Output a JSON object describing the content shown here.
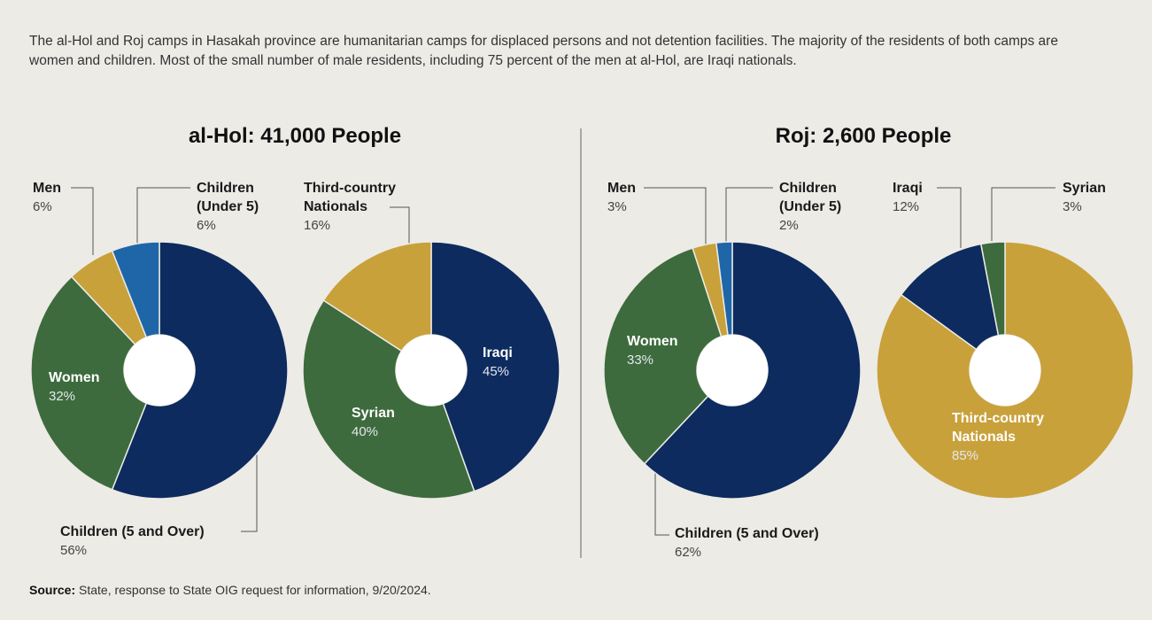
{
  "description": "The al-Hol and Roj camps in Hasakah province are humanitarian camps for displaced persons and not detention facilities. The majority of the residents of both camps are women and children. Most of the small number of male residents, including 75 percent of the men at al-Hol, are Iraqi nationals.",
  "source_label": "Source:",
  "source": "State, response to State OIG request for information, 9/20/2024.",
  "chart_data": [
    {
      "type": "pie",
      "title": "al-Hol: 41,000 People",
      "categories": [
        "Children (5 and Over)",
        "Women",
        "Men",
        "Children (Under 5)"
      ],
      "values": [
        56,
        32,
        6,
        6
      ],
      "value_labels": [
        "56%",
        "32%",
        "6%",
        "6%"
      ],
      "colors": [
        "#0d2b5e",
        "#3d6b3d",
        "#c9a13b",
        "#1f66a8"
      ]
    },
    {
      "type": "pie",
      "categories": [
        "Iraqi",
        "Syrian",
        "Third-country Nationals"
      ],
      "values": [
        45,
        40,
        16
      ],
      "value_labels": [
        "45%",
        "40%",
        "16%"
      ],
      "colors": [
        "#0d2b5e",
        "#3d6b3d",
        "#c9a13b"
      ]
    },
    {
      "type": "pie",
      "title": "Roj: 2,600 People",
      "categories": [
        "Children (5 and Over)",
        "Women",
        "Men",
        "Children (Under 5)"
      ],
      "values": [
        62,
        33,
        3,
        2
      ],
      "value_labels": [
        "62%",
        "33%",
        "3%",
        "2%"
      ],
      "colors": [
        "#0d2b5e",
        "#3d6b3d",
        "#c9a13b",
        "#1f66a8"
      ]
    },
    {
      "type": "pie",
      "categories": [
        "Third-country Nationals",
        "Iraqi",
        "Syrian"
      ],
      "values": [
        85,
        12,
        3
      ],
      "value_labels": [
        "85%",
        "12%",
        "3%"
      ],
      "colors": [
        "#c9a13b",
        "#0d2b5e",
        "#3d6b3d"
      ]
    }
  ]
}
